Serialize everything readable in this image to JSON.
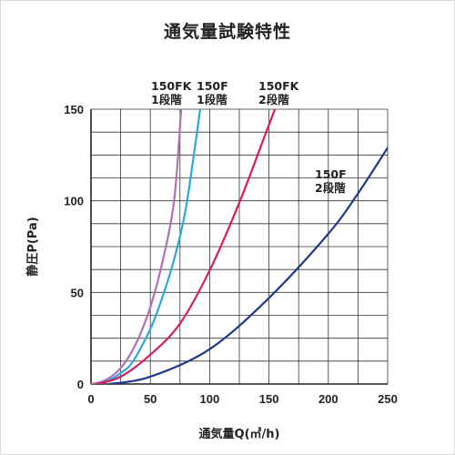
{
  "chart_data": {
    "type": "line",
    "title": "通気量試験特性",
    "xlabel": "通気量Q(㎥/h)",
    "ylabel": "静圧P(Pa)",
    "xlim": [
      0,
      250
    ],
    "ylim": [
      0,
      150
    ],
    "xticks": [
      0,
      50,
      100,
      150,
      200,
      250
    ],
    "yticks": [
      0,
      50,
      100,
      150
    ],
    "x_tick_labels": [
      "0",
      "50",
      "100",
      "150",
      "200",
      "250"
    ],
    "y_tick_labels": [
      "0",
      "50",
      "100",
      "150"
    ],
    "grid": true,
    "series": [
      {
        "name_lines": [
          "150FK",
          "1段階"
        ],
        "color": "#b06fb6",
        "points": [
          [
            0,
            0
          ],
          [
            10,
            1.5
          ],
          [
            20,
            5.5
          ],
          [
            30,
            13
          ],
          [
            40,
            25
          ],
          [
            50,
            42
          ],
          [
            60,
            66
          ],
          [
            70,
            100
          ],
          [
            76,
            150
          ]
        ]
      },
      {
        "name_lines": [
          "150F",
          "1段階"
        ],
        "color": "#2aa8dc",
        "points": [
          [
            5,
            0
          ],
          [
            15,
            2
          ],
          [
            25,
            6
          ],
          [
            35,
            12
          ],
          [
            50,
            30
          ],
          [
            60,
            47
          ],
          [
            70,
            68
          ],
          [
            80,
            96
          ],
          [
            92,
            150
          ]
        ]
      },
      {
        "name_lines": [
          "150FK",
          "2段階"
        ],
        "color": "#d81b5f",
        "points": [
          [
            5,
            0
          ],
          [
            25,
            4
          ],
          [
            50,
            16
          ],
          [
            75,
            33
          ],
          [
            100,
            62
          ],
          [
            125,
            99
          ],
          [
            145,
            133
          ],
          [
            155,
            150
          ]
        ]
      },
      {
        "name_lines": [
          "150F",
          "2段階"
        ],
        "color": "#1f3a8c",
        "points": [
          [
            15,
            0
          ],
          [
            50,
            4
          ],
          [
            100,
            19
          ],
          [
            150,
            47
          ],
          [
            200,
            82
          ],
          [
            225,
            104
          ],
          [
            250,
            129
          ]
        ]
      }
    ]
  }
}
